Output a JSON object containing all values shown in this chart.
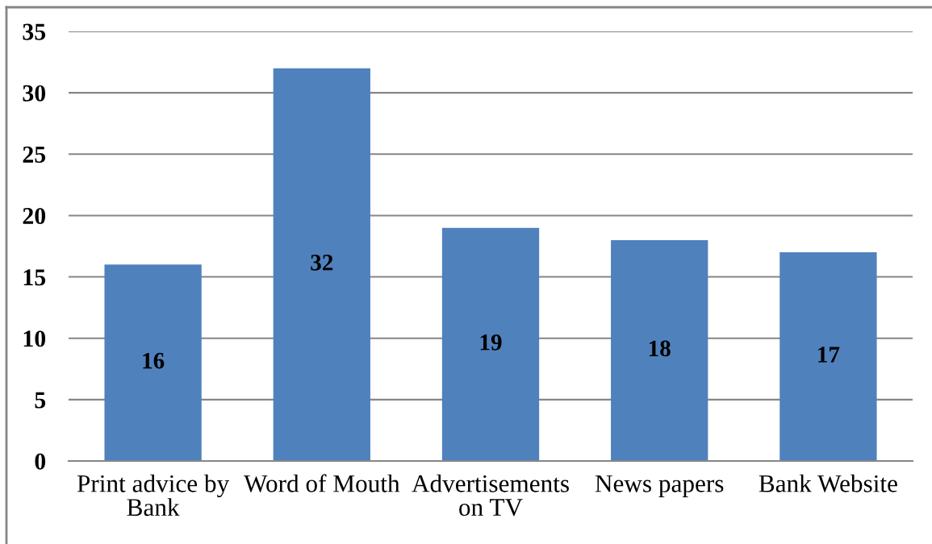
{
  "chart_data": {
    "type": "bar",
    "categories": [
      "Print advice by Bank",
      "Word of Mouth",
      "Advertisements on TV",
      "News papers",
      "Bank Website"
    ],
    "values": [
      16,
      32,
      19,
      18,
      17
    ],
    "color": "#4f81bd",
    "ylim": [
      0,
      35
    ],
    "yticks": [
      0,
      5,
      10,
      15,
      20,
      25,
      30,
      35
    ],
    "grid": "y",
    "data_labels": true
  }
}
